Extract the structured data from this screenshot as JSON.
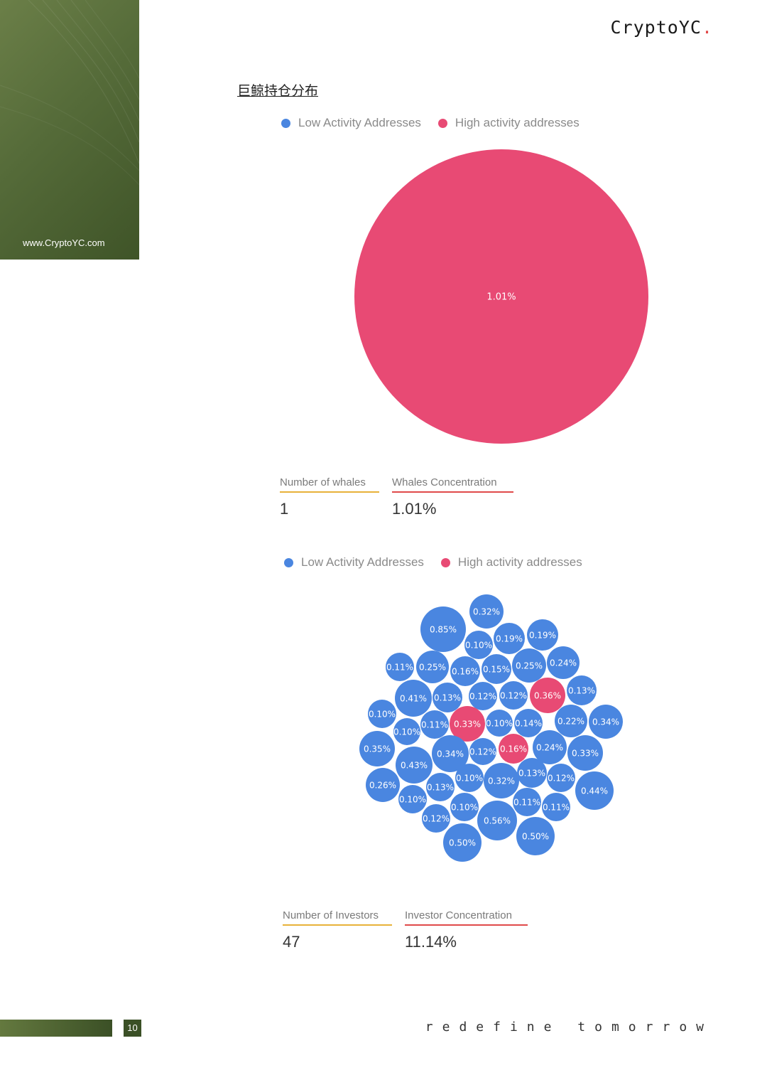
{
  "sidebar": {
    "url": "www.CryptoYC.com"
  },
  "header": {
    "brand": "CryptoYC",
    "brand_dot": "."
  },
  "section": {
    "title": "巨鲸持仓分布"
  },
  "legend": {
    "low_label": "Low Activity Addresses",
    "high_label": "High activity addresses"
  },
  "colors": {
    "low": "#4a86e0",
    "high": "#e84a74",
    "accent_gold": "#e8b23a",
    "accent_red": "#e04a4a"
  },
  "whales": {
    "count_label": "Number of whales",
    "count_value": "1",
    "concentration_label": "Whales Concentration",
    "concentration_value": "1.01%"
  },
  "investors": {
    "count_label": "Number of Investors",
    "count_value": "47",
    "concentration_label": "Investor Concentration",
    "concentration_value": "11.14%"
  },
  "chart_data": [
    {
      "type": "bubble",
      "series": [
        {
          "name": "High activity addresses",
          "values": [
            1.01
          ]
        }
      ],
      "labels": [
        "1.01%"
      ]
    },
    {
      "type": "bubble",
      "bubbles": [
        {
          "v": 0.32,
          "g": "low"
        },
        {
          "v": 0.85,
          "g": "low"
        },
        {
          "v": 0.1,
          "g": "low"
        },
        {
          "v": 0.19,
          "g": "low"
        },
        {
          "v": 0.19,
          "g": "low"
        },
        {
          "v": 0.11,
          "g": "low"
        },
        {
          "v": 0.25,
          "g": "low"
        },
        {
          "v": 0.16,
          "g": "low"
        },
        {
          "v": 0.15,
          "g": "low"
        },
        {
          "v": 0.25,
          "g": "low"
        },
        {
          "v": 0.24,
          "g": "low"
        },
        {
          "v": 0.41,
          "g": "low"
        },
        {
          "v": 0.13,
          "g": "low"
        },
        {
          "v": 0.12,
          "g": "low"
        },
        {
          "v": 0.12,
          "g": "low"
        },
        {
          "v": 0.36,
          "g": "high"
        },
        {
          "v": 0.13,
          "g": "low"
        },
        {
          "v": 0.1,
          "g": "low"
        },
        {
          "v": 0.11,
          "g": "low"
        },
        {
          "v": 0.33,
          "g": "high"
        },
        {
          "v": 0.1,
          "g": "low"
        },
        {
          "v": 0.14,
          "g": "low"
        },
        {
          "v": 0.22,
          "g": "low"
        },
        {
          "v": 0.34,
          "g": "low"
        },
        {
          "v": 0.1,
          "g": "low"
        },
        {
          "v": 0.35,
          "g": "low"
        },
        {
          "v": 0.34,
          "g": "low"
        },
        {
          "v": 0.12,
          "g": "low"
        },
        {
          "v": 0.16,
          "g": "high"
        },
        {
          "v": 0.24,
          "g": "low"
        },
        {
          "v": 0.33,
          "g": "low"
        },
        {
          "v": 0.43,
          "g": "low"
        },
        {
          "v": 0.13,
          "g": "low"
        },
        {
          "v": 0.26,
          "g": "low"
        },
        {
          "v": 0.1,
          "g": "low"
        },
        {
          "v": 0.32,
          "g": "low"
        },
        {
          "v": 0.12,
          "g": "low"
        },
        {
          "v": 0.13,
          "g": "low"
        },
        {
          "v": 0.44,
          "g": "low"
        },
        {
          "v": 0.1,
          "g": "low"
        },
        {
          "v": 0.1,
          "g": "low"
        },
        {
          "v": 0.11,
          "g": "low"
        },
        {
          "v": 0.11,
          "g": "low"
        },
        {
          "v": 0.12,
          "g": "low"
        },
        {
          "v": 0.56,
          "g": "low"
        },
        {
          "v": 0.5,
          "g": "low"
        },
        {
          "v": 0.5,
          "g": "low"
        }
      ]
    }
  ],
  "footer": {
    "page_number": "10",
    "tagline": "redefine tomorrow"
  }
}
